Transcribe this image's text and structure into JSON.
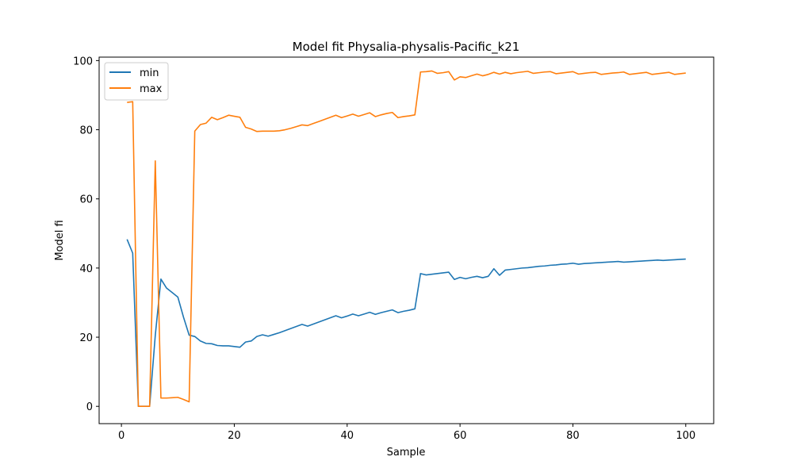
{
  "chart_data": {
    "type": "line",
    "title": "Model fit Physalia-physalis-Pacific_k21",
    "xlabel": "Sample",
    "ylabel": "Model fi",
    "xlim": [
      -3.95,
      104.95
    ],
    "ylim": [
      -5,
      101
    ],
    "xticks": [
      0,
      20,
      40,
      60,
      80,
      100
    ],
    "yticks": [
      0,
      20,
      40,
      60,
      80,
      100
    ],
    "grid": false,
    "legend_position": "upper left",
    "series": [
      {
        "name": "min",
        "color": "#1f77b4",
        "x": [
          1,
          2,
          3,
          4,
          5,
          6,
          7,
          8,
          9,
          10,
          11,
          12,
          13,
          14,
          15,
          16,
          17,
          18,
          19,
          20,
          21,
          22,
          23,
          24,
          25,
          26,
          27,
          28,
          29,
          30,
          31,
          32,
          33,
          34,
          35,
          36,
          37,
          38,
          39,
          40,
          41,
          42,
          43,
          44,
          45,
          46,
          47,
          48,
          49,
          50,
          51,
          52,
          53,
          54,
          55,
          56,
          57,
          58,
          59,
          60,
          61,
          62,
          63,
          64,
          65,
          66,
          67,
          68,
          69,
          70,
          71,
          72,
          73,
          74,
          75,
          76,
          77,
          78,
          79,
          80,
          81,
          82,
          83,
          84,
          85,
          86,
          87,
          88,
          89,
          90,
          91,
          92,
          93,
          94,
          95,
          96,
          97,
          98,
          99,
          100
        ],
        "y": [
          48.3,
          44.3,
          0,
          0,
          0,
          20.5,
          36.8,
          34.2,
          32.9,
          31.6,
          25.8,
          20.6,
          20.2,
          18.9,
          18.2,
          18.1,
          17.6,
          17.5,
          17.5,
          17.3,
          17.1,
          18.6,
          18.9,
          20.2,
          20.7,
          20.3,
          20.8,
          21.3,
          21.9,
          22.5,
          23.1,
          23.7,
          23.2,
          23.8,
          24.4,
          25.0,
          25.6,
          26.2,
          25.6,
          26.1,
          26.7,
          26.2,
          26.7,
          27.2,
          26.6,
          27.1,
          27.5,
          27.9,
          27.1,
          27.5,
          27.8,
          28.2,
          38.4,
          38.0,
          38.2,
          38.4,
          38.6,
          38.8,
          36.7,
          37.3,
          36.9,
          37.3,
          37.6,
          37.2,
          37.6,
          39.8,
          37.9,
          39.4,
          39.6,
          39.8,
          40.0,
          40.1,
          40.3,
          40.5,
          40.6,
          40.8,
          40.9,
          41.1,
          41.2,
          41.4,
          41.1,
          41.3,
          41.4,
          41.5,
          41.6,
          41.7,
          41.8,
          41.9,
          41.7,
          41.8,
          41.9,
          42.0,
          42.1,
          42.2,
          42.3,
          42.2,
          42.3,
          42.4,
          42.5,
          42.6
        ]
      },
      {
        "name": "max",
        "color": "#ff7f0e",
        "x": [
          1,
          2,
          3,
          4,
          5,
          6,
          7,
          8,
          9,
          10,
          11,
          12,
          13,
          14,
          15,
          16,
          17,
          18,
          19,
          20,
          21,
          22,
          23,
          24,
          25,
          26,
          27,
          28,
          29,
          30,
          31,
          32,
          33,
          34,
          35,
          36,
          37,
          38,
          39,
          40,
          41,
          42,
          43,
          44,
          45,
          46,
          47,
          48,
          49,
          50,
          51,
          52,
          53,
          54,
          55,
          56,
          57,
          58,
          59,
          60,
          61,
          62,
          63,
          64,
          65,
          66,
          67,
          68,
          69,
          70,
          71,
          72,
          73,
          74,
          75,
          76,
          77,
          78,
          79,
          80,
          81,
          82,
          83,
          84,
          85,
          86,
          87,
          88,
          89,
          90,
          91,
          92,
          93,
          94,
          95,
          96,
          97,
          98,
          99,
          100
        ],
        "y": [
          87.9,
          88.1,
          0,
          0,
          0,
          71.0,
          2.4,
          2.4,
          2.5,
          2.6,
          2.0,
          1.3,
          79.6,
          81.5,
          81.9,
          83.6,
          82.9,
          83.5,
          84.2,
          83.9,
          83.6,
          80.7,
          80.2,
          79.5,
          79.6,
          79.6,
          79.6,
          79.7,
          80.0,
          80.4,
          80.9,
          81.4,
          81.2,
          81.8,
          82.4,
          83.0,
          83.6,
          84.2,
          83.5,
          84.0,
          84.5,
          83.9,
          84.4,
          84.9,
          83.8,
          84.3,
          84.7,
          85.0,
          83.5,
          83.8,
          84.0,
          84.3,
          96.7,
          96.8,
          97.0,
          96.3,
          96.5,
          96.8,
          94.4,
          95.3,
          95.1,
          95.6,
          96.1,
          95.6,
          96.0,
          96.6,
          96.1,
          96.6,
          96.2,
          96.5,
          96.7,
          96.9,
          96.3,
          96.5,
          96.7,
          96.8,
          96.2,
          96.4,
          96.6,
          96.8,
          96.1,
          96.3,
          96.5,
          96.6,
          96.0,
          96.2,
          96.4,
          96.5,
          96.7,
          96.0,
          96.2,
          96.4,
          96.6,
          96.0,
          96.2,
          96.4,
          96.6,
          96.0,
          96.2,
          96.4
        ]
      }
    ]
  }
}
